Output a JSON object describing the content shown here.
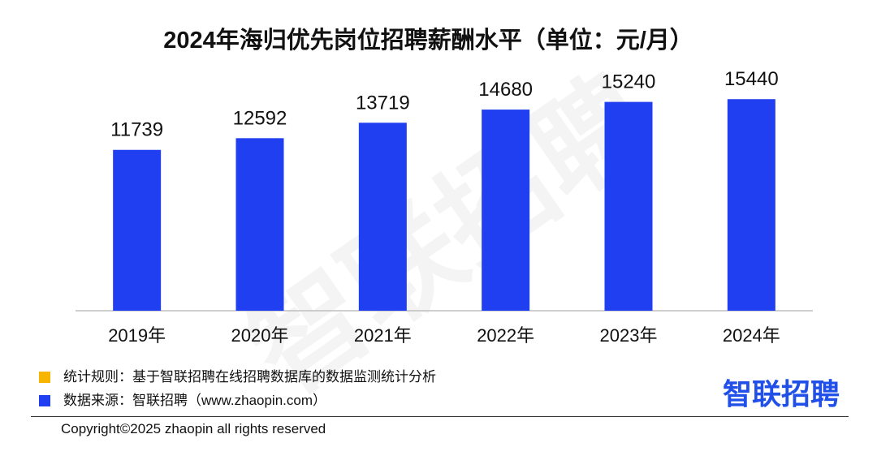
{
  "chart_data": {
    "type": "bar",
    "title": "2024年海归优先岗位招聘薪酬水平（单位：元/月）",
    "categories": [
      "2019年",
      "2020年",
      "2021年",
      "2022年",
      "2023年",
      "2024年"
    ],
    "values": [
      11739,
      12592,
      13719,
      14680,
      15240,
      15440
    ],
    "xlabel": "",
    "ylabel": "",
    "ylim": [
      0,
      18000
    ],
    "grid": false,
    "legend": "none",
    "data_labels": true
  },
  "colors": {
    "bar": "#1f3ff0",
    "rule_marker": "#f7b500",
    "source_marker": "#1f3ff0",
    "logo": "#2150e8",
    "axis": "#bfbfbf"
  },
  "notes": [
    {
      "text": "统计规则：基于智联招聘在线招聘数据库的数据监测统计分析"
    },
    {
      "text": "数据来源：智联招聘（www.zhaopin.com）"
    }
  ],
  "logo": {
    "text": "智联招聘"
  },
  "watermark": {
    "text": "智联招聘"
  },
  "copyright": "Copyright©2025 zhaopin all rights reserved"
}
